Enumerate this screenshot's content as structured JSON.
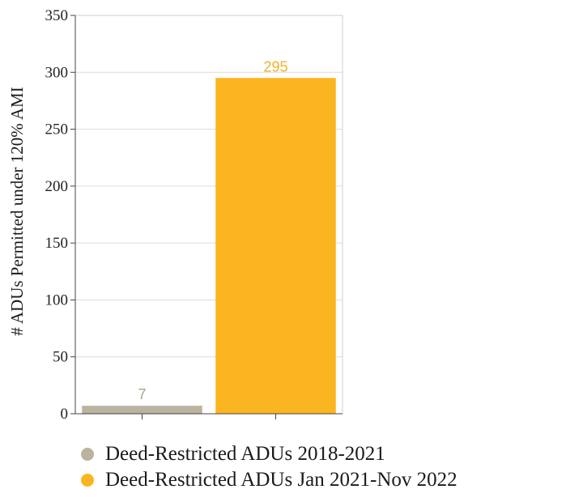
{
  "chart_data": {
    "type": "bar",
    "title": "",
    "xlabel": "",
    "ylabel": "# ADUs Permitted under 120% AMI",
    "ylim": [
      0,
      350
    ],
    "yticks": [
      "0",
      "50",
      "100",
      "150",
      "200",
      "250",
      "300",
      "350"
    ],
    "ytick_values": [
      0,
      50,
      100,
      150,
      200,
      250,
      300,
      350
    ],
    "grid": true,
    "legend_position": "bottom",
    "categories": [
      "Deed-Restricted ADUs 2018-2021",
      "Deed-Restricted ADUs Jan 2021-Nov 2022"
    ],
    "values": [
      7,
      295
    ],
    "data_labels": [
      "7",
      "295"
    ],
    "colors": [
      "#bbb29f",
      "#fbb521"
    ],
    "label_colors": [
      "#aaa28f",
      "#f3b02a"
    ]
  }
}
